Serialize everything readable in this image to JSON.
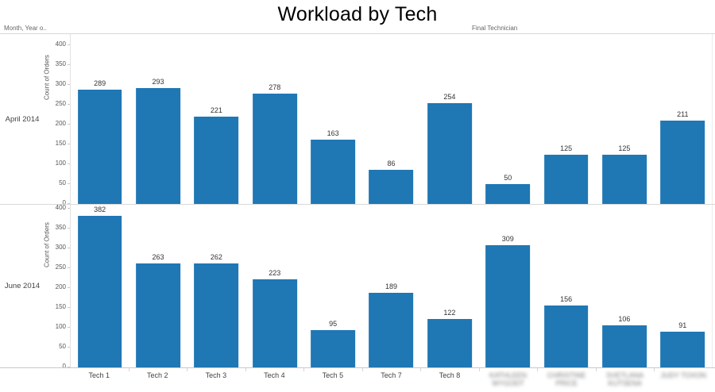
{
  "title": "Workload by Tech",
  "header": {
    "row_shelf_label": "Month, Year o..",
    "column_shelf_label": "Final Technician"
  },
  "colors": {
    "bar": "#1f77b4",
    "axis_text": "#555555",
    "value_label_text": "#333333",
    "divider": "#d8d8d8"
  },
  "chart_data": {
    "type": "bar",
    "title": "Workload by Tech",
    "xlabel": "Final Technician",
    "ylabel": "Count of Orders",
    "ylim": [
      0,
      400
    ],
    "ytick_step": 50,
    "grid": false,
    "legend_position": "none",
    "layout": "two stacked row panels (small multiples by month), shared category axis at bottom",
    "categories": [
      "Tech 1",
      "Tech 2",
      "Tech 3",
      "Tech 4",
      "Tech 5",
      "Tech 7",
      "Tech 8",
      "KATHLEEN\nWYGODT",
      "CHRISTINE PRICE",
      "SVETLANA\nKUTSENA",
      "JUDY TOXON"
    ],
    "categories_redacted": [
      false,
      false,
      false,
      false,
      false,
      false,
      false,
      true,
      true,
      true,
      true
    ],
    "series": [
      {
        "name": "April 2014",
        "values": [
          289,
          293,
          221,
          278,
          163,
          86,
          254,
          50,
          125,
          125,
          211
        ]
      },
      {
        "name": "June 2014",
        "values": [
          382,
          263,
          262,
          223,
          95,
          189,
          122,
          309,
          156,
          106,
          91
        ]
      }
    ]
  }
}
